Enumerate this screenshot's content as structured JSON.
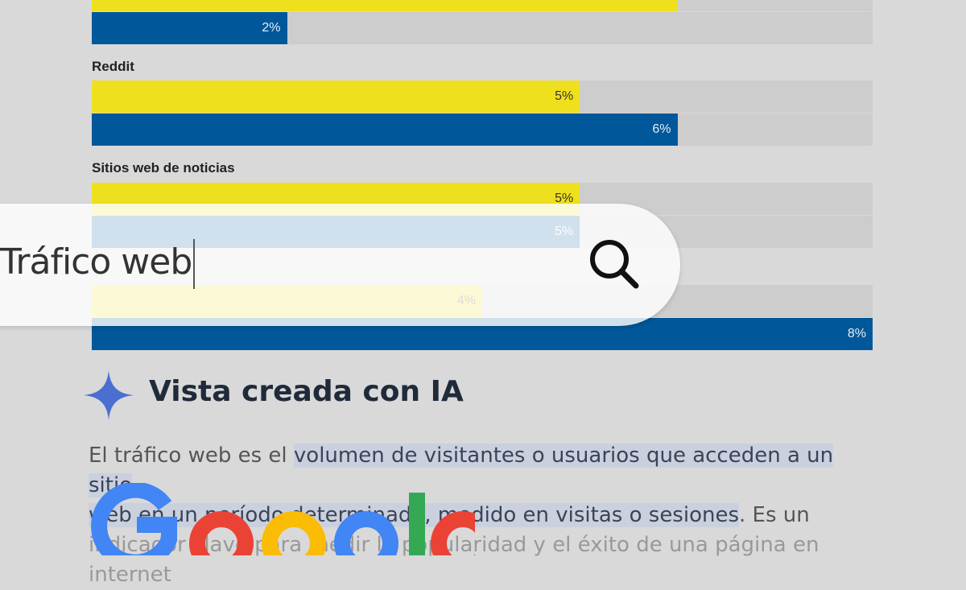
{
  "chart_data": {
    "type": "bar",
    "orientation": "horizontal",
    "series_colors": [
      "#efe01e",
      "#00579a"
    ],
    "categories": [
      {
        "label": "",
        "values": [
          null,
          2
        ],
        "labels": [
          "",
          "2%"
        ]
      },
      {
        "label": "Reddit",
        "values": [
          5,
          6
        ],
        "labels": [
          "5%",
          "6%"
        ]
      },
      {
        "label": "Sitios web de noticias",
        "values": [
          5,
          5
        ],
        "labels": [
          "5%",
          "5%"
        ]
      },
      {
        "label": "",
        "values": [
          4,
          8
        ],
        "labels": [
          "4%",
          "8%"
        ]
      }
    ],
    "xlim": [
      0,
      8
    ]
  },
  "search": {
    "query": "Tráfico web",
    "icon": "search-icon"
  },
  "ai_overview": {
    "title": "Vista creada con IA",
    "icon": "sparkle-icon",
    "accent": "#4a6fd1",
    "text_before": "El tráfico web es el ",
    "highlight_1": "volumen de visitantes o usuarios que acceden a un sitio",
    "highlight_2": "web en un período determinado, medido en visitas o sesiones",
    "text_after": ". Es un",
    "line3": "indicador clave para medir la popularidad y el éxito de una página en internet"
  },
  "logo": {
    "text": "Google",
    "colors": [
      "#4285f4",
      "#ea4335",
      "#fbbc05",
      "#34a853"
    ]
  }
}
